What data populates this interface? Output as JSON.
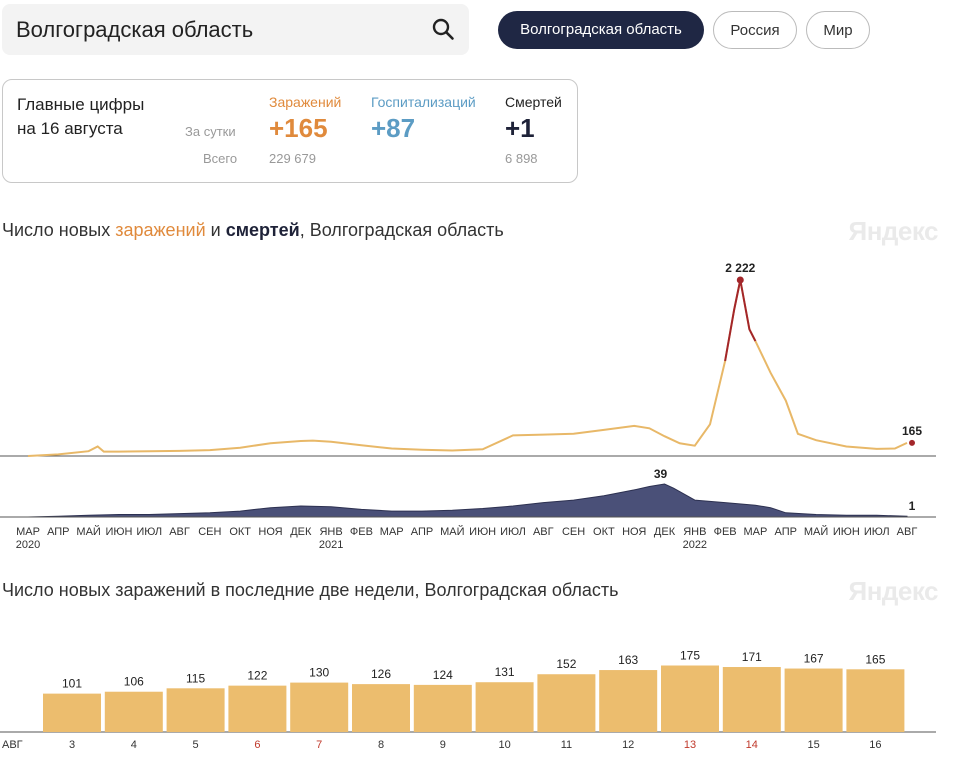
{
  "search": {
    "query": "Волгоградская область"
  },
  "regions": [
    {
      "label": "Волгоградская область",
      "active": true
    },
    {
      "label": "Россия",
      "active": false
    },
    {
      "label": "Мир",
      "active": false
    }
  ],
  "stats": {
    "title_line1": "Главные цифры",
    "title_line2": "на 16 августа",
    "row_day": "За сутки",
    "row_total": "Всего",
    "infections": {
      "label": "Заражений",
      "day": "+165",
      "total": "229 679"
    },
    "hospitalizations": {
      "label": "Госпитализаций",
      "day": "+87"
    },
    "deaths": {
      "label": "Смертей",
      "day": "+1",
      "total": "6 898"
    }
  },
  "colors": {
    "infections": "#e08a3c",
    "infections_line": "#e8b868",
    "peak": "#a3262a",
    "hospital": "#5c9cc4",
    "deaths": "#2d3151",
    "weekend": "#c0392b",
    "bar": "#ecbd6e"
  },
  "watermark": "Яндекс",
  "chart_data": [
    {
      "type": "line",
      "title_parts": [
        "Число новых ",
        "заражений",
        " и ",
        "смертей",
        ", Волгоградская область"
      ],
      "x_months": [
        "МАР",
        "АПР",
        "МАЙ",
        "ИЮН",
        "ИЮЛ",
        "АВГ",
        "СЕН",
        "ОКТ",
        "НОЯ",
        "ДЕК",
        "ЯНВ",
        "ФЕВ",
        "МАР",
        "АПР",
        "МАЙ",
        "ИЮН",
        "ИЮЛ",
        "АВГ",
        "СЕН",
        "ОКТ",
        "НОЯ",
        "ДЕК",
        "ЯНВ",
        "ФЕВ",
        "МАР",
        "АПР",
        "МАЙ",
        "ИЮН",
        "ИЮЛ",
        "АВГ"
      ],
      "x_years": [
        {
          "label": "2020",
          "month_index": 0
        },
        {
          "label": "2021",
          "month_index": 10
        },
        {
          "label": "2022",
          "month_index": 22
        }
      ],
      "series": [
        {
          "name": "заражений",
          "peak": {
            "month": 23.5,
            "value": 2222,
            "label": "2 222"
          },
          "last": {
            "value": 165,
            "label": "165"
          },
          "points": [
            [
              0,
              0
            ],
            [
              1,
              20
            ],
            [
              2,
              60
            ],
            [
              2.3,
              120
            ],
            [
              2.5,
              55
            ],
            [
              3,
              55
            ],
            [
              4,
              60
            ],
            [
              5,
              65
            ],
            [
              6,
              75
            ],
            [
              7,
              105
            ],
            [
              8,
              160
            ],
            [
              9,
              190
            ],
            [
              9.4,
              195
            ],
            [
              10,
              180
            ],
            [
              11,
              135
            ],
            [
              12,
              95
            ],
            [
              13,
              80
            ],
            [
              14,
              70
            ],
            [
              15,
              85
            ],
            [
              16,
              260
            ],
            [
              17,
              270
            ],
            [
              18,
              280
            ],
            [
              19,
              330
            ],
            [
              20,
              380
            ],
            [
              20.5,
              350
            ],
            [
              21,
              250
            ],
            [
              21.5,
              160
            ],
            [
              22,
              130
            ],
            [
              22.5,
              400
            ],
            [
              23,
              1200
            ],
            [
              23.3,
              1850
            ],
            [
              23.5,
              2222
            ],
            [
              23.8,
              1600
            ],
            [
              24,
              1450
            ],
            [
              24.5,
              1050
            ],
            [
              25,
              700
            ],
            [
              25.4,
              280
            ],
            [
              26,
              200
            ],
            [
              27,
              120
            ],
            [
              28,
              90
            ],
            [
              28.6,
              95
            ],
            [
              29,
              165
            ]
          ]
        },
        {
          "name": "смертей",
          "peak": {
            "month": 21,
            "value": 39,
            "label": "39"
          },
          "last": {
            "value": 1,
            "label": "1"
          },
          "points": [
            [
              0,
              0
            ],
            [
              1,
              1
            ],
            [
              2,
              2
            ],
            [
              3,
              3
            ],
            [
              4,
              3
            ],
            [
              5,
              4
            ],
            [
              6,
              5
            ],
            [
              7,
              7
            ],
            [
              8,
              11
            ],
            [
              9,
              13
            ],
            [
              10,
              12
            ],
            [
              11,
              9
            ],
            [
              12,
              7
            ],
            [
              13,
              7
            ],
            [
              14,
              8
            ],
            [
              15,
              10
            ],
            [
              16,
              13
            ],
            [
              17,
              17
            ],
            [
              18,
              20
            ],
            [
              19,
              25
            ],
            [
              20,
              32
            ],
            [
              20.5,
              36
            ],
            [
              21,
              39
            ],
            [
              21.3,
              34
            ],
            [
              21.8,
              24
            ],
            [
              22,
              20
            ],
            [
              23,
              17
            ],
            [
              24,
              14
            ],
            [
              24.5,
              11
            ],
            [
              25,
              5
            ],
            [
              26,
              3
            ],
            [
              27,
              2
            ],
            [
              28,
              2
            ],
            [
              29,
              1
            ]
          ]
        }
      ]
    },
    {
      "type": "bar",
      "title": "Число новых заражений в последние две недели, Волгоградская область",
      "month_label": "АВГ",
      "categories": [
        "3",
        "4",
        "5",
        "6",
        "7",
        "8",
        "9",
        "10",
        "11",
        "12",
        "13",
        "14",
        "15",
        "16"
      ],
      "values": [
        101,
        106,
        115,
        122,
        130,
        126,
        124,
        131,
        152,
        163,
        175,
        171,
        167,
        165
      ],
      "weekend": [
        false,
        false,
        false,
        true,
        true,
        false,
        false,
        false,
        false,
        false,
        true,
        true,
        false,
        false
      ]
    }
  ]
}
